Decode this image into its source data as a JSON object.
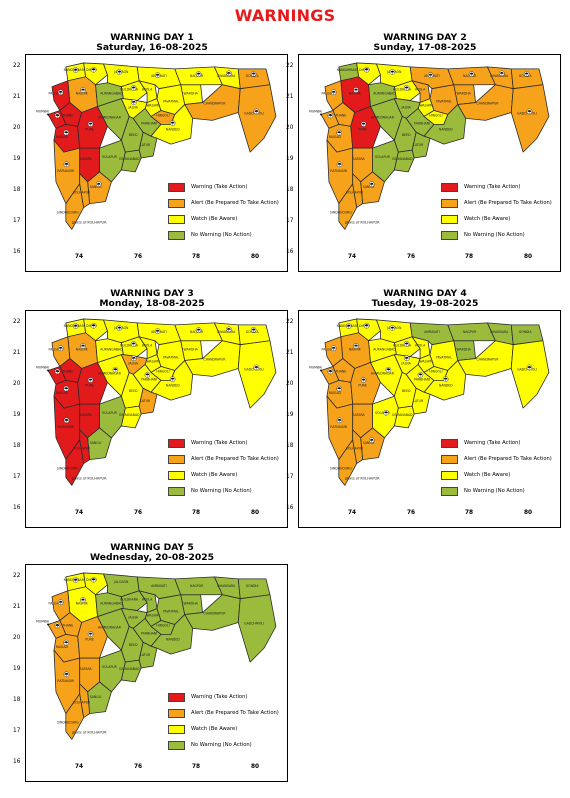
{
  "page": {
    "title": "WARNINGS"
  },
  "colors": {
    "warning": "#e31a1c",
    "alert": "#f7a21b",
    "watch": "#ffff00",
    "no_warning": "#9bbb3c",
    "border": "#2b2b2b"
  },
  "legend": [
    {
      "key": "warning",
      "label": "Warning (Take Action)",
      "color": "#e31a1c"
    },
    {
      "key": "alert",
      "label": "Alert (Be Prepared To Take Action)",
      "color": "#f7a21b"
    },
    {
      "key": "watch",
      "label": "Watch (Be Aware)",
      "color": "#ffff00"
    },
    {
      "key": "no_warning",
      "label": "No Warning (No Action)",
      "color": "#9bbb3c"
    }
  ],
  "axis": {
    "y_ticks": [
      "22",
      "21",
      "20",
      "19",
      "18",
      "17",
      "16"
    ],
    "x_ticks": [
      "74",
      "76",
      "78",
      "80"
    ]
  },
  "map_labels": {
    "kolhapur": "ghats of KOLHAPUR",
    "mumbai": "MUMBAI"
  },
  "districts": [
    "Nandurbar",
    "Dhule",
    "Jalgaon",
    "Buldhana",
    "Akola",
    "Amravati",
    "Washim",
    "Yavatmal",
    "Wardha",
    "Nagpur",
    "Bhandara",
    "Gondia",
    "Chandrapur",
    "Gadchiroli",
    "Nashik",
    "Palghar",
    "Thane",
    "Mumbai",
    "Raigad",
    "Ratnagiri",
    "Sindhudurg",
    "Pune",
    "Ahmednagar",
    "Aurangabad",
    "Jalna",
    "Beed",
    "Parbhani",
    "Hingoli",
    "Nanded",
    "Latur",
    "Osmanabad",
    "Solapur",
    "Satara",
    "Sangli",
    "Kolhapur"
  ],
  "panels": [
    {
      "heading": "WARNING DAY 1",
      "date": "Saturday, 16-08-2025",
      "levels": [
        "watch",
        "watch",
        "watch",
        "watch",
        "watch",
        "watch",
        "watch",
        "watch",
        "watch",
        "watch",
        "watch",
        "alert",
        "alert",
        "alert",
        "alert",
        "warning",
        "warning",
        "warning",
        "warning",
        "alert",
        "alert",
        "warning",
        "no_warning",
        "no_warning",
        "watch",
        "no_warning",
        "no_warning",
        "alert",
        "watch",
        "no_warning",
        "no_warning",
        "no_warning",
        "warning",
        "alert",
        "alert"
      ]
    },
    {
      "heading": "WARNING DAY 2",
      "date": "Sunday, 17-08-2025",
      "levels": [
        "no_warning",
        "watch",
        "watch",
        "watch",
        "alert",
        "alert",
        "watch",
        "alert",
        "alert",
        "alert",
        "alert",
        "alert",
        "alert",
        "alert",
        "warning",
        "alert",
        "alert",
        "alert",
        "alert",
        "alert",
        "alert",
        "warning",
        "no_warning",
        "no_warning",
        "no_warning",
        "no_warning",
        "no_warning",
        "watch",
        "no_warning",
        "no_warning",
        "no_warning",
        "no_warning",
        "alert",
        "alert",
        "alert"
      ]
    },
    {
      "heading": "WARNING DAY 3",
      "date": "Monday, 18-08-2025",
      "levels": [
        "watch",
        "watch",
        "watch",
        "watch",
        "watch",
        "watch",
        "watch",
        "watch",
        "watch",
        "watch",
        "watch",
        "watch",
        "watch",
        "watch",
        "alert",
        "alert",
        "warning",
        "warning",
        "warning",
        "warning",
        "warning",
        "warning",
        "watch",
        "watch",
        "alert",
        "watch",
        "watch",
        "watch",
        "watch",
        "alert",
        "watch",
        "no_warning",
        "warning",
        "no_warning",
        "warning"
      ]
    },
    {
      "heading": "WARNING DAY 4",
      "date": "Tuesday, 19-08-2025",
      "levels": [
        "watch",
        "watch",
        "watch",
        "watch",
        "watch",
        "no_warning",
        "watch",
        "watch",
        "no_warning",
        "no_warning",
        "no_warning",
        "no_warning",
        "watch",
        "watch",
        "alert",
        "alert",
        "alert",
        "alert",
        "alert",
        "alert",
        "alert",
        "alert",
        "watch",
        "watch",
        "watch",
        "watch",
        "watch",
        "watch",
        "watch",
        "watch",
        "watch",
        "watch",
        "alert",
        "alert",
        "alert"
      ]
    },
    {
      "heading": "WARNING DAY 5",
      "date": "Wednesday, 20-08-2025",
      "levels": [
        "watch",
        "watch",
        "no_warning",
        "no_warning",
        "no_warning",
        "no_warning",
        "no_warning",
        "no_warning",
        "no_warning",
        "no_warning",
        "no_warning",
        "no_warning",
        "no_warning",
        "no_warning",
        "watch",
        "alert",
        "alert",
        "alert",
        "alert",
        "alert",
        "alert",
        "alert",
        "no_warning",
        "no_warning",
        "no_warning",
        "no_warning",
        "no_warning",
        "no_warning",
        "no_warning",
        "no_warning",
        "no_warning",
        "no_warning",
        "alert",
        "no_warning",
        "alert"
      ]
    }
  ]
}
